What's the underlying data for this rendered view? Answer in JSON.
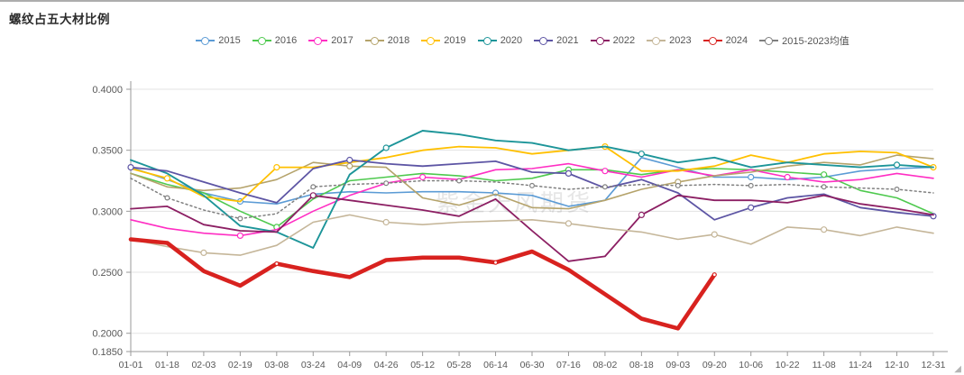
{
  "header": {
    "title": "螺纹占五大材比例"
  },
  "watermark": "紫金天风期货",
  "resize_handle": "◢",
  "chart_data": {
    "type": "line",
    "title": "螺纹占五大材比例",
    "legend_position": "top",
    "grid": "horizontal",
    "categories": [
      "01-01",
      "01-18",
      "02-03",
      "02-19",
      "03-08",
      "03-24",
      "04-09",
      "04-26",
      "05-12",
      "05-28",
      "06-14",
      "06-30",
      "07-16",
      "08-02",
      "08-18",
      "09-03",
      "09-20",
      "10-06",
      "10-22",
      "11-08",
      "11-24",
      "12-10",
      "12-31"
    ],
    "y_axis": {
      "min": 0.185,
      "max": 0.4,
      "ticks": [
        {
          "label": "0.4000",
          "value": 0.4
        },
        {
          "label": "0.3500",
          "value": 0.35
        },
        {
          "label": "0.3000",
          "value": 0.3
        },
        {
          "label": "0.2500",
          "value": 0.25
        },
        {
          "label": "0.2000",
          "value": 0.2
        },
        {
          "label": "0.1850",
          "value": 0.185
        }
      ]
    },
    "series": [
      {
        "name": "2015",
        "color": "#5B9BD5",
        "width": 1.6,
        "markers": [
          3,
          10,
          17
        ],
        "values": [
          0.336,
          0.326,
          0.315,
          0.308,
          0.306,
          0.314,
          0.316,
          0.315,
          0.316,
          0.316,
          0.315,
          0.313,
          0.304,
          0.309,
          0.344,
          0.336,
          0.328,
          0.328,
          0.326,
          0.328,
          0.333,
          0.335,
          0.336
        ]
      },
      {
        "name": "2016",
        "color": "#4EC94E",
        "width": 1.6,
        "markers": [
          4,
          12,
          19
        ],
        "values": [
          0.331,
          0.322,
          0.315,
          0.3,
          0.287,
          0.31,
          0.325,
          0.328,
          0.331,
          0.329,
          0.325,
          0.327,
          0.334,
          0.334,
          0.33,
          0.334,
          0.335,
          0.334,
          0.332,
          0.33,
          0.317,
          0.311,
          0.298
        ]
      },
      {
        "name": "2017",
        "color": "#FF2EC3",
        "width": 1.6,
        "markers": [
          3,
          8,
          13,
          18
        ],
        "values": [
          0.293,
          0.286,
          0.282,
          0.28,
          0.285,
          0.3,
          0.313,
          0.323,
          0.328,
          0.326,
          0.334,
          0.335,
          0.339,
          0.333,
          0.328,
          0.334,
          0.329,
          0.334,
          0.328,
          0.324,
          0.326,
          0.331,
          0.327
        ]
      },
      {
        "name": "2018",
        "color": "#B5A36B",
        "width": 1.6,
        "markers": [
          6,
          15
        ],
        "values": [
          0.331,
          0.32,
          0.317,
          0.319,
          0.326,
          0.34,
          0.337,
          0.336,
          0.311,
          0.305,
          0.314,
          0.303,
          0.302,
          0.309,
          0.318,
          0.324,
          0.329,
          0.332,
          0.337,
          0.34,
          0.338,
          0.346,
          0.343
        ]
      },
      {
        "name": "2019",
        "color": "#FFC000",
        "width": 1.8,
        "markers": [
          1,
          4,
          13,
          22
        ],
        "values": [
          0.335,
          0.327,
          0.312,
          0.308,
          0.336,
          0.336,
          0.34,
          0.344,
          0.35,
          0.353,
          0.352,
          0.347,
          0.35,
          0.353,
          0.333,
          0.333,
          0.337,
          0.346,
          0.34,
          0.347,
          0.349,
          0.348,
          0.336
        ]
      },
      {
        "name": "2020",
        "color": "#1D9599",
        "width": 1.9,
        "markers": [
          7,
          14,
          21
        ],
        "values": [
          0.342,
          0.331,
          0.313,
          0.288,
          0.283,
          0.27,
          0.33,
          0.352,
          0.366,
          0.363,
          0.358,
          0.356,
          0.35,
          0.353,
          0.347,
          0.34,
          0.344,
          0.336,
          0.34,
          0.338,
          0.336,
          0.338,
          0.336
        ]
      },
      {
        "name": "2021",
        "color": "#5D55A4",
        "width": 1.8,
        "markers": [
          0,
          6,
          12,
          17,
          22
        ],
        "values": [
          0.336,
          0.333,
          0.324,
          0.315,
          0.307,
          0.335,
          0.342,
          0.339,
          0.337,
          0.339,
          0.341,
          0.332,
          0.331,
          0.319,
          0.326,
          0.315,
          0.293,
          0.303,
          0.311,
          0.314,
          0.303,
          0.299,
          0.296
        ]
      },
      {
        "name": "2022",
        "color": "#8C1F63",
        "width": 1.8,
        "markers": [
          5,
          14
        ],
        "values": [
          0.302,
          0.304,
          0.289,
          0.284,
          0.283,
          0.313,
          0.309,
          0.305,
          0.301,
          0.296,
          0.31,
          0.284,
          0.259,
          0.263,
          0.297,
          0.313,
          0.309,
          0.309,
          0.307,
          0.313,
          0.306,
          0.302,
          0.297
        ]
      },
      {
        "name": "2023",
        "color": "#C5B699",
        "width": 1.6,
        "markers": [
          2,
          7,
          12,
          16,
          19
        ],
        "values": [
          0.277,
          0.271,
          0.266,
          0.264,
          0.272,
          0.291,
          0.297,
          0.291,
          0.289,
          0.291,
          0.292,
          0.293,
          0.29,
          0.286,
          0.283,
          0.277,
          0.281,
          0.273,
          0.287,
          0.285,
          0.28,
          0.287,
          0.282
        ]
      },
      {
        "name": "2024",
        "color": "#D8221F",
        "width": 4.6,
        "marker_r": 2,
        "markers": [
          4,
          10,
          16
        ],
        "values": [
          0.277,
          0.274,
          0.251,
          0.239,
          0.257,
          0.251,
          0.246,
          0.26,
          0.262,
          0.262,
          0.258,
          0.267,
          0.252,
          0.232,
          0.212,
          0.204,
          0.248,
          null,
          null,
          null,
          null,
          null,
          null
        ]
      },
      {
        "name": "2015-2023均值",
        "color": "#7F7F7F",
        "width": 1.5,
        "dash": "2 3.2",
        "marker_r": 2.4,
        "markers": [
          1,
          3,
          5,
          7,
          9,
          11,
          13,
          15,
          17,
          19,
          21
        ],
        "values": [
          0.327,
          0.311,
          0.301,
          0.294,
          0.298,
          0.32,
          0.322,
          0.323,
          0.325,
          0.325,
          0.324,
          0.321,
          0.318,
          0.32,
          0.322,
          0.321,
          0.322,
          0.321,
          0.322,
          0.32,
          0.319,
          0.318,
          0.315
        ]
      }
    ]
  }
}
